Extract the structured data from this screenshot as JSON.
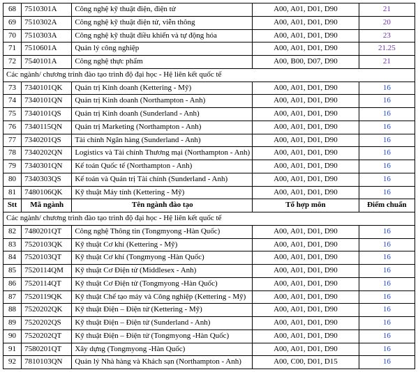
{
  "columns": {
    "stt": "Stt",
    "code": "Mã ngành",
    "name": "Tên ngành đào tạo",
    "combo": "Tổ hợp môn",
    "score": "Điểm chuẩn"
  },
  "section1": "Các ngành/ chương trình đào tạo trình độ đại học - Hệ liên kết quốc tế",
  "section2": "Các ngành/ chương trình đào tạo trình độ đại học - Hệ liên kết quốc tế",
  "block1": [
    {
      "stt": "68",
      "code": "7510301A",
      "name": "Công nghệ kỹ thuật điện, điện tử",
      "combo": "A00, A01, D01, D90",
      "score": "21",
      "cls": "purple"
    },
    {
      "stt": "69",
      "code": "7510302A",
      "name": "Công nghệ kỹ thuật điện tử, viễn thông",
      "combo": "A00, A01, D01, D90",
      "score": "20",
      "cls": "purple"
    },
    {
      "stt": "70",
      "code": "7510303A",
      "name": "Công nghệ kỹ thuật điều khiển và tự động hóa",
      "combo": "A00, A01, D01, D90",
      "score": "23",
      "cls": "purple"
    },
    {
      "stt": "71",
      "code": "7510601A",
      "name": "Quản lý công nghiệp",
      "combo": "A00, A01, D01, D90",
      "score": "21.25",
      "cls": "purple"
    },
    {
      "stt": "72",
      "code": "7540101A",
      "name": "Công nghệ thực phẩm",
      "combo": "A00, B00, D07, D90",
      "score": "21",
      "cls": "purple"
    }
  ],
  "block2": [
    {
      "stt": "73",
      "code": "7340101QK",
      "name": "Quản trị Kinh doanh (Kettering - Mỹ)",
      "combo": "A00, A01, D01, D90",
      "score": "16",
      "cls": "blue"
    },
    {
      "stt": "74",
      "code": "7340101QN",
      "name": "Quản trị Kinh doanh (Northampton - Anh)",
      "combo": "A00, A01, D01, D90",
      "score": "16",
      "cls": "blue"
    },
    {
      "stt": "75",
      "code": "7340101QS",
      "name": "Quản trị Kinh doanh (Sunderland - Anh)",
      "combo": "A00, A01, D01, D90",
      "score": "16",
      "cls": "blue"
    },
    {
      "stt": "76",
      "code": "7340115QN",
      "name": "Quản trị Marketing (Northampton - Anh)",
      "combo": "A00, A01, D01, D90",
      "score": "16",
      "cls": "blue"
    },
    {
      "stt": "77",
      "code": "7340201QS",
      "name": "Tài chính Ngân hàng (Sunderland - Anh)",
      "combo": "A00, A01, D01, D90",
      "score": "16",
      "cls": "blue"
    },
    {
      "stt": "78",
      "code": "7340202QN",
      "name": "Logistics và Tài chính Thương mại (Northampton - Anh)",
      "combo": "A00, A01, D01, D90",
      "score": "16",
      "cls": "blue"
    },
    {
      "stt": "79",
      "code": "7340301QN",
      "name": "Kế toán Quốc tế (Northampton - Anh)",
      "combo": "A00, A01, D01, D90",
      "score": "16",
      "cls": "blue"
    },
    {
      "stt": "80",
      "code": "7340303QS",
      "name": "Kế toán và Quản trị Tài chính (Sunderland - Anh)",
      "combo": "A00, A01, D01, D90",
      "score": "16",
      "cls": "blue"
    },
    {
      "stt": "81",
      "code": "7480106QK",
      "name": "Kỹ thuật Máy tính (Kettering - Mỹ)",
      "combo": "A00, A01, D01, D90",
      "score": "16",
      "cls": "blue"
    }
  ],
  "block3": [
    {
      "stt": "82",
      "code": "7480201QT",
      "name": "Công nghệ Thông tin (Tongmyong -Hàn Quốc)",
      "combo": "A00, A01, D01, D90",
      "score": "16",
      "cls": "blue"
    },
    {
      "stt": "83",
      "code": "7520103QK",
      "name": "Kỹ thuật Cơ khí (Kettering - Mỹ)",
      "combo": "A00, A01, D01, D90",
      "score": "16",
      "cls": "blue"
    },
    {
      "stt": "84",
      "code": "7520103QT",
      "name": "Kỹ thuật Cơ khí (Tongmyong -Hàn Quốc)",
      "combo": "A00, A01, D01, D90",
      "score": "16",
      "cls": "blue"
    },
    {
      "stt": "85",
      "code": "7520114QM",
      "name": "Kỹ thuật Cơ Điện tử (Middlesex - Anh)",
      "combo": "A00, A01, D01, D90",
      "score": "16",
      "cls": "blue"
    },
    {
      "stt": "86",
      "code": "7520114QT",
      "name": "Kỹ thuật Cơ Điện tử (Tongmyong -Hàn Quốc)",
      "combo": "A00, A01, D01, D90",
      "score": "16",
      "cls": "blue"
    },
    {
      "stt": "87",
      "code": "7520119QK",
      "name": "Kỹ thuật Chế tạo máy và Công nghiệp (Kettering - Mỹ)",
      "combo": "A00, A01, D01, D90",
      "score": "16",
      "cls": "blue"
    },
    {
      "stt": "88",
      "code": "7520202QK",
      "name": "Kỹ thuật Điện – Điện tử (Kettering - Mỹ)",
      "combo": "A00, A01, D01, D90",
      "score": "16",
      "cls": "blue"
    },
    {
      "stt": "89",
      "code": "7520202QS",
      "name": "Kỹ thuật Điện – Điện tử (Sunderland - Anh)",
      "combo": "A00, A01, D01, D90",
      "score": "16",
      "cls": "blue"
    },
    {
      "stt": "90",
      "code": "7520202QT",
      "name": "Kỹ thuật Điện – Điện tử (Tongmyong -Hàn Quốc)",
      "combo": "A00, A01, D01, D90",
      "score": "16",
      "cls": "blue"
    },
    {
      "stt": "91",
      "code": "7580201QT",
      "name": "Xây dựng (Tongmyong -Hàn Quốc)",
      "combo": "A00, A01, D01, D90",
      "score": "16",
      "cls": "blue"
    },
    {
      "stt": "92",
      "code": "7810103QN",
      "name": "Quản lý Nhà hàng và Khách sạn (Northampton - Anh)",
      "combo": "A00, C00, D01, D15",
      "score": "16",
      "cls": "blue"
    }
  ]
}
